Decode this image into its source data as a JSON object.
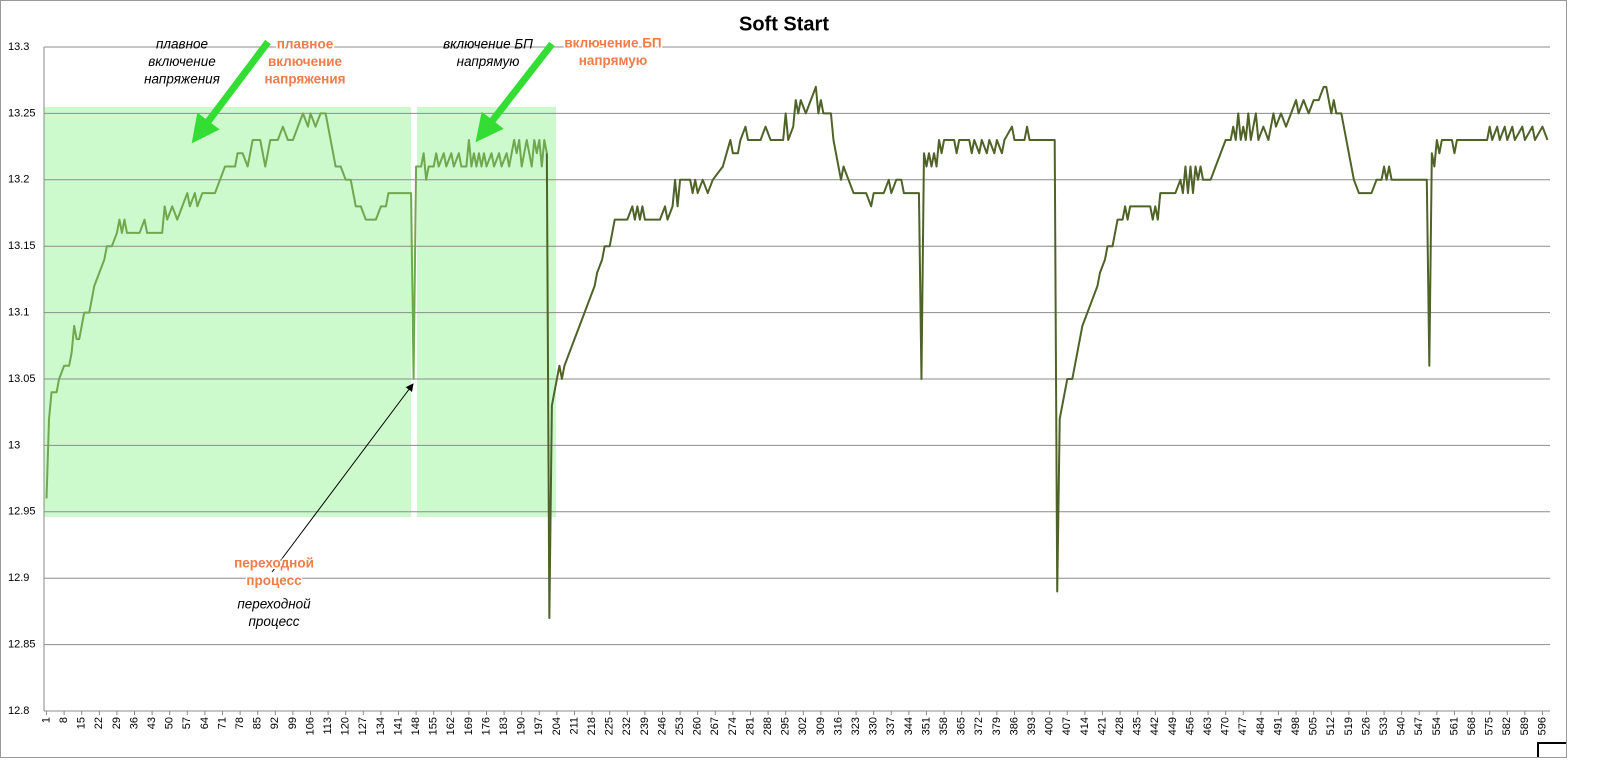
{
  "chart_data": {
    "type": "line",
    "title": "Soft Start",
    "xlim": [
      0,
      599
    ],
    "xticks": [
      1,
      8,
      15,
      22,
      29,
      36,
      43,
      50,
      57,
      64,
      71,
      78,
      85,
      92,
      99,
      106,
      113,
      120,
      127,
      134,
      141,
      148,
      155,
      162,
      169,
      176,
      183,
      190,
      197,
      204,
      211,
      218,
      225,
      232,
      239,
      246,
      253,
      260,
      267,
      274,
      281,
      288,
      295,
      302,
      309,
      316,
      323,
      330,
      337,
      344,
      351,
      358,
      365,
      372,
      379,
      386,
      393,
      400,
      407,
      414,
      421,
      428,
      435,
      442,
      449,
      456,
      463,
      470,
      477,
      484,
      491,
      498,
      505,
      512,
      519,
      526,
      533,
      540,
      547,
      554,
      561,
      568,
      575,
      582,
      589,
      596
    ],
    "ylim": [
      12.8,
      13.3
    ],
    "yticks": [
      12.8,
      12.85,
      12.9,
      12.95,
      13,
      13.05,
      13.1,
      13.15,
      13.2,
      13.25,
      13.3
    ],
    "grid": true,
    "series": [
      {
        "color": "#6fa84e",
        "x": [
          1,
          2,
          3,
          5,
          6,
          8,
          10,
          11,
          12,
          13,
          14,
          16,
          18,
          20,
          22,
          24,
          25,
          27,
          29,
          30,
          31,
          32,
          33,
          35,
          38,
          40,
          41,
          47,
          48,
          49,
          51,
          53,
          55,
          57,
          58,
          60,
          61,
          63,
          68,
          70,
          72,
          76,
          77,
          79,
          81,
          83,
          86,
          88,
          90,
          93,
          95,
          97,
          99,
          101,
          103,
          105,
          106,
          108,
          110,
          112,
          114,
          116,
          118,
          120,
          122,
          124,
          126,
          128,
          132,
          134,
          136,
          137,
          146,
          147,
          148,
          150,
          151,
          152,
          153,
          155,
          156,
          157,
          159,
          160,
          162,
          163,
          165,
          166,
          168,
          169,
          170,
          171,
          172,
          173,
          174,
          175,
          176,
          178,
          179,
          181,
          182,
          184,
          185,
          187,
          188,
          189,
          190,
          192,
          193,
          194,
          195,
          196,
          197,
          198,
          199,
          200
        ],
        "values": [
          12.96,
          13.02,
          13.04,
          13.04,
          13.05,
          13.06,
          13.06,
          13.07,
          13.09,
          13.08,
          13.08,
          13.1,
          13.1,
          13.12,
          13.13,
          13.14,
          13.15,
          13.15,
          13.16,
          13.17,
          13.16,
          13.17,
          13.16,
          13.16,
          13.16,
          13.17,
          13.16,
          13.16,
          13.18,
          13.17,
          13.18,
          13.17,
          13.18,
          13.19,
          13.18,
          13.19,
          13.18,
          13.19,
          13.19,
          13.2,
          13.21,
          13.21,
          13.22,
          13.22,
          13.21,
          13.23,
          13.23,
          13.21,
          13.23,
          13.23,
          13.24,
          13.23,
          13.23,
          13.24,
          13.25,
          13.24,
          13.25,
          13.24,
          13.25,
          13.25,
          13.23,
          13.21,
          13.21,
          13.2,
          13.2,
          13.18,
          13.18,
          13.17,
          13.17,
          13.18,
          13.18,
          13.19,
          13.19,
          13.05,
          13.21,
          13.21,
          13.22,
          13.2,
          13.21,
          13.21,
          13.22,
          13.21,
          13.22,
          13.21,
          13.22,
          13.21,
          13.22,
          13.21,
          13.21,
          13.23,
          13.21,
          13.22,
          13.21,
          13.22,
          13.21,
          13.22,
          13.21,
          13.22,
          13.21,
          13.22,
          13.21,
          13.22,
          13.21,
          13.23,
          13.22,
          13.23,
          13.21,
          13.23,
          13.22,
          13.21,
          13.23,
          13.22,
          13.23,
          13.21,
          13.23,
          13.22
        ]
      },
      {
        "color": "#4f6228",
        "x": [
          200,
          201,
          202,
          204,
          205,
          206,
          207,
          209,
          211,
          213,
          215,
          217,
          219,
          220,
          222,
          223,
          225,
          227,
          232,
          234,
          235,
          236,
          237,
          238,
          239,
          245,
          247,
          248,
          250,
          251,
          252,
          253,
          257,
          258,
          259,
          260,
          262,
          264,
          266,
          270,
          273,
          274,
          276,
          277,
          279,
          280,
          285,
          287,
          289,
          294,
          295,
          296,
          298,
          299,
          300,
          301,
          303,
          305,
          307,
          308,
          309,
          310,
          313,
          314,
          316,
          317,
          318,
          320,
          322,
          327,
          329,
          330,
          334,
          336,
          337,
          339,
          341,
          342,
          348,
          349,
          350,
          351,
          352,
          353,
          354,
          355,
          356,
          357,
          358,
          362,
          363,
          364,
          368,
          369,
          370,
          372,
          373,
          375,
          376,
          378,
          379,
          381,
          382,
          385,
          386,
          390,
          391,
          392,
          402,
          403,
          404,
          406,
          407,
          409,
          411,
          413,
          415,
          417,
          419,
          420,
          422,
          423,
          425,
          427,
          429,
          430,
          431,
          432,
          440,
          441,
          442,
          443,
          444,
          450,
          452,
          453,
          454,
          455,
          456,
          457,
          458,
          459,
          460,
          461,
          464,
          466,
          468,
          470,
          472,
          473,
          474,
          475,
          476,
          477,
          478,
          479,
          480,
          482,
          483,
          485,
          487,
          489,
          490,
          492,
          494,
          496,
          498,
          499,
          501,
          503,
          505,
          507,
          509,
          510,
          511,
          512,
          513,
          514,
          516,
          518,
          520,
          521,
          523,
          528,
          530,
          532,
          533,
          534,
          535,
          536,
          550,
          551,
          552,
          553,
          554,
          555,
          556,
          560,
          561,
          562,
          574,
          575,
          576,
          578,
          579,
          581,
          582,
          584,
          585,
          588,
          589,
          592,
          593,
          596,
          598
        ],
        "values": [
          13.22,
          12.87,
          13.03,
          13.05,
          13.06,
          13.05,
          13.06,
          13.07,
          13.08,
          13.09,
          13.1,
          13.11,
          13.12,
          13.13,
          13.14,
          13.15,
          13.15,
          13.17,
          13.17,
          13.18,
          13.17,
          13.18,
          13.17,
          13.18,
          13.17,
          13.17,
          13.18,
          13.17,
          13.18,
          13.2,
          13.18,
          13.2,
          13.2,
          13.19,
          13.2,
          13.19,
          13.2,
          13.19,
          13.2,
          13.21,
          13.23,
          13.22,
          13.22,
          13.23,
          13.24,
          13.23,
          13.23,
          13.24,
          13.23,
          13.23,
          13.25,
          13.23,
          13.24,
          13.26,
          13.25,
          13.26,
          13.25,
          13.26,
          13.27,
          13.25,
          13.26,
          13.25,
          13.25,
          13.23,
          13.21,
          13.2,
          13.21,
          13.2,
          13.19,
          13.19,
          13.18,
          13.19,
          13.19,
          13.2,
          13.19,
          13.2,
          13.2,
          13.19,
          13.19,
          13.05,
          13.22,
          13.21,
          13.22,
          13.21,
          13.22,
          13.21,
          13.23,
          13.22,
          13.23,
          13.23,
          13.22,
          13.23,
          13.23,
          13.22,
          13.23,
          13.22,
          13.23,
          13.22,
          13.23,
          13.22,
          13.23,
          13.22,
          13.23,
          13.24,
          13.23,
          13.23,
          13.24,
          13.23,
          13.23,
          12.89,
          13.02,
          13.04,
          13.05,
          13.05,
          13.07,
          13.09,
          13.1,
          13.11,
          13.12,
          13.13,
          13.14,
          13.15,
          13.15,
          13.17,
          13.17,
          13.18,
          13.17,
          13.18,
          13.18,
          13.17,
          13.18,
          13.17,
          13.19,
          13.19,
          13.2,
          13.19,
          13.21,
          13.19,
          13.21,
          13.19,
          13.21,
          13.2,
          13.21,
          13.2,
          13.2,
          13.21,
          13.22,
          13.23,
          13.23,
          13.24,
          13.23,
          13.25,
          13.23,
          13.24,
          13.23,
          13.25,
          13.23,
          13.25,
          13.23,
          13.24,
          13.23,
          13.25,
          13.24,
          13.25,
          13.24,
          13.25,
          13.26,
          13.25,
          13.26,
          13.25,
          13.26,
          13.26,
          13.27,
          13.27,
          13.26,
          13.25,
          13.26,
          13.25,
          13.25,
          13.23,
          13.21,
          13.2,
          13.19,
          13.19,
          13.2,
          13.2,
          13.21,
          13.2,
          13.21,
          13.2,
          13.2,
          13.06,
          13.22,
          13.21,
          13.23,
          13.22,
          13.23,
          13.23,
          13.22,
          13.23,
          13.23,
          13.24,
          13.23,
          13.24,
          13.23,
          13.24,
          13.23,
          13.24,
          13.23,
          13.24,
          13.23,
          13.24,
          13.23,
          13.24,
          13.23
        ]
      }
    ],
    "annotations": [
      {
        "lines": [
          "плавное",
          "включение",
          "напряжения"
        ],
        "color": "#000000"
      },
      {
        "lines": [
          "плавное",
          "включение",
          "напряжения"
        ],
        "color": "#f07c4a"
      },
      {
        "lines": [
          "включение БП",
          "напрямую"
        ],
        "color": "#000000"
      },
      {
        "lines": [
          "включение БП",
          "напрямую"
        ],
        "color": "#f07c4a"
      },
      {
        "lines": [
          "переходной",
          "процесс"
        ],
        "color": "#f07c4a"
      },
      {
        "lines": [
          "переходной",
          "процесс"
        ],
        "color": "#000000"
      }
    ]
  }
}
